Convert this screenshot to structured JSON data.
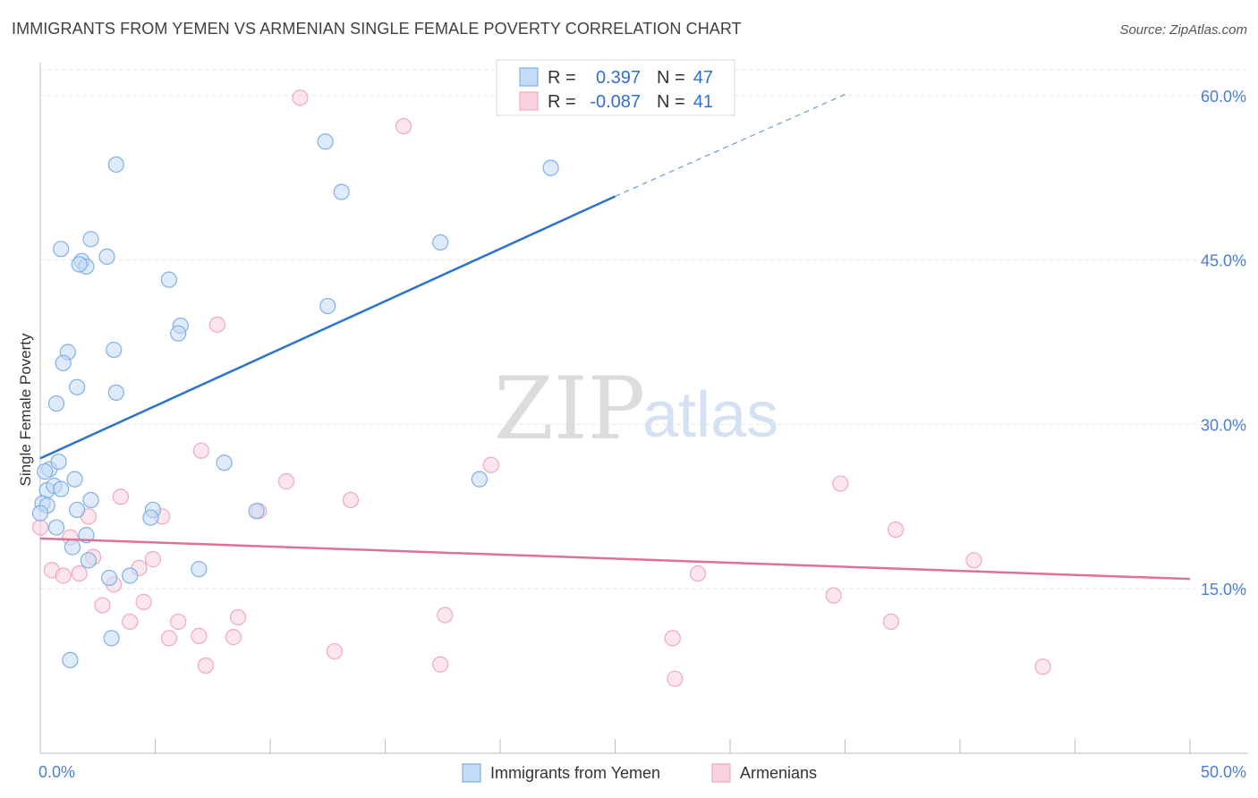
{
  "header": {
    "title": "IMMIGRANTS FROM YEMEN VS ARMENIAN SINGLE FEMALE POVERTY CORRELATION CHART",
    "source": "Source: ZipAtlas.com"
  },
  "watermark": {
    "zip": "ZIP",
    "atlas": "atlas"
  },
  "chart_data": {
    "type": "scatter",
    "ylabel": "Single Female Poverty",
    "xlim": [
      0,
      50
    ],
    "ylim": [
      0,
      63
    ],
    "x_tick_labels": [
      {
        "value": 0,
        "label": "0.0%"
      },
      {
        "value": 50,
        "label": "50.0%"
      }
    ],
    "x_minor_ticks": [
      0,
      5,
      10,
      15,
      20,
      25,
      30,
      35,
      40,
      45,
      50
    ],
    "y_ticks": [
      {
        "value": 15,
        "label": "15.0%"
      },
      {
        "value": 30,
        "label": "30.0%"
      },
      {
        "value": 45,
        "label": "45.0%"
      },
      {
        "value": 60,
        "label": "60.0%"
      }
    ],
    "grid": true,
    "legend": {
      "placement": "top-center",
      "rows": [
        {
          "r_label": "R =",
          "r_value": "0.397",
          "n_label": "N =",
          "n_value": "47"
        },
        {
          "r_label": "R =",
          "r_value": "-0.087",
          "n_label": "N =",
          "n_value": "41"
        }
      ]
    },
    "series": [
      {
        "name": "Immigrants from Yemen",
        "color": "#7fb0e8",
        "fill": "#c4dbf5",
        "line_color": "#2a72cf",
        "trend": {
          "x0": 0,
          "y0": 26.9,
          "x1": 25,
          "y1": 50.8,
          "dashed_to_x": 35,
          "dashed_to_y": 60.1
        },
        "points": [
          [
            3.3,
            53.7
          ],
          [
            0.9,
            46.0
          ],
          [
            2.2,
            46.9
          ],
          [
            1.8,
            44.9
          ],
          [
            2.0,
            44.4
          ],
          [
            1.7,
            44.6
          ],
          [
            2.9,
            45.3
          ],
          [
            5.6,
            43.2
          ],
          [
            6.1,
            39.0
          ],
          [
            6.0,
            38.3
          ],
          [
            1.2,
            36.6
          ],
          [
            1.0,
            35.6
          ],
          [
            3.2,
            36.8
          ],
          [
            1.6,
            33.4
          ],
          [
            3.3,
            32.9
          ],
          [
            0.7,
            31.9
          ],
          [
            12.4,
            55.8
          ],
          [
            13.1,
            51.2
          ],
          [
            22.2,
            53.4
          ],
          [
            17.4,
            46.6
          ],
          [
            12.5,
            40.8
          ],
          [
            0.3,
            24.0
          ],
          [
            0.4,
            25.9
          ],
          [
            0.2,
            25.7
          ],
          [
            0.8,
            26.6
          ],
          [
            0.6,
            24.4
          ],
          [
            0.9,
            24.1
          ],
          [
            1.5,
            25.0
          ],
          [
            0.1,
            22.8
          ],
          [
            0.3,
            22.6
          ],
          [
            1.6,
            22.2
          ],
          [
            2.2,
            23.1
          ],
          [
            0.7,
            20.6
          ],
          [
            1.4,
            18.8
          ],
          [
            2.0,
            19.9
          ],
          [
            2.1,
            17.6
          ],
          [
            4.9,
            22.2
          ],
          [
            4.8,
            21.5
          ],
          [
            8.0,
            26.5
          ],
          [
            9.4,
            22.1
          ],
          [
            19.1,
            25.0
          ],
          [
            3.0,
            16.0
          ],
          [
            3.9,
            16.2
          ],
          [
            6.9,
            16.8
          ],
          [
            3.1,
            10.5
          ],
          [
            1.3,
            8.5
          ],
          [
            0.0,
            21.9
          ]
        ]
      },
      {
        "name": "Armenians",
        "color": "#f0a8c0",
        "fill": "#f9d2df",
        "line_color": "#e0709a",
        "trend": {
          "x0": 0,
          "y0": 19.6,
          "x1": 50,
          "y1": 15.9
        },
        "points": [
          [
            11.3,
            59.8
          ],
          [
            15.8,
            57.2
          ],
          [
            7.7,
            39.1
          ],
          [
            0.0,
            20.6
          ],
          [
            2.1,
            21.6
          ],
          [
            1.3,
            19.7
          ],
          [
            0.5,
            16.7
          ],
          [
            1.0,
            16.2
          ],
          [
            1.7,
            16.4
          ],
          [
            2.3,
            17.9
          ],
          [
            3.2,
            15.4
          ],
          [
            3.5,
            23.4
          ],
          [
            4.3,
            16.9
          ],
          [
            4.9,
            17.7
          ],
          [
            5.3,
            21.6
          ],
          [
            7.0,
            27.6
          ],
          [
            10.7,
            24.8
          ],
          [
            9.5,
            22.1
          ],
          [
            13.5,
            23.1
          ],
          [
            19.6,
            26.3
          ],
          [
            2.7,
            13.5
          ],
          [
            3.9,
            12.0
          ],
          [
            4.5,
            13.8
          ],
          [
            5.6,
            10.5
          ],
          [
            6.0,
            12.0
          ],
          [
            6.9,
            10.7
          ],
          [
            7.2,
            8.0
          ],
          [
            8.4,
            10.6
          ],
          [
            8.6,
            12.4
          ],
          [
            12.8,
            9.3
          ],
          [
            17.4,
            8.1
          ],
          [
            17.6,
            12.6
          ],
          [
            28.6,
            16.4
          ],
          [
            27.5,
            10.5
          ],
          [
            27.6,
            6.8
          ],
          [
            34.8,
            24.6
          ],
          [
            34.5,
            14.4
          ],
          [
            37.0,
            12.0
          ],
          [
            37.2,
            20.4
          ],
          [
            40.6,
            17.6
          ],
          [
            43.6,
            7.9
          ]
        ]
      }
    ]
  }
}
